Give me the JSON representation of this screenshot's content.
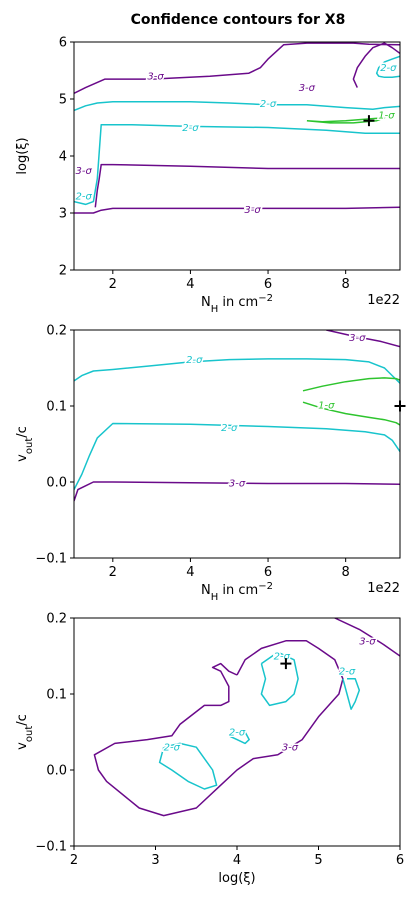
{
  "figure": {
    "title": "Confidence contours for X8"
  },
  "colors": {
    "three_sigma": "#6a0a8a",
    "two_sigma": "#18c4cc",
    "one_sigma": "#2ec42e",
    "axes": "#000000"
  },
  "chart_data": [
    {
      "type": "line",
      "xlabel": "N_H in cm^-2",
      "ylabel": "log(ξ)",
      "x_exponent": "1e22",
      "xlim": [
        1,
        9.4
      ],
      "ylim": [
        2,
        6
      ],
      "xticks": [
        "2",
        "4",
        "6",
        "8"
      ],
      "yticks": [
        "2",
        "3",
        "4",
        "5",
        "6"
      ],
      "best_fit": {
        "x": 8.6,
        "y": 4.62
      },
      "series": [
        {
          "name": "3-σ",
          "level": "3-sigma",
          "labels": [
            {
              "text": "3-σ",
              "x": 3.1,
              "y": 5.4
            },
            {
              "text": "3-σ",
              "x": 5.6,
              "y": 3.06
            },
            {
              "text": "3-σ",
              "x": 1.25,
              "y": 3.75
            },
            {
              "text": "3-σ",
              "x": 7.0,
              "y": 5.2
            }
          ],
          "x": [
            1.0,
            1.3,
            1.8,
            3.0,
            4.5,
            5.5,
            5.8,
            6.0,
            6.4,
            7.0,
            7.6,
            8.2,
            8.6,
            9.4
          ],
          "y": [
            5.1,
            5.2,
            5.35,
            5.35,
            5.4,
            5.45,
            5.55,
            5.7,
            5.95,
            5.98,
            5.98,
            5.98,
            5.96,
            5.95
          ]
        },
        {
          "name": "3-σ",
          "level": "3-sigma",
          "x": [
            1.0,
            1.3,
            1.5,
            1.7,
            2.0,
            4.0,
            6.0,
            8.0,
            9.4
          ],
          "y": [
            3.0,
            3.0,
            3.0,
            3.05,
            3.08,
            3.08,
            3.08,
            3.08,
            3.1
          ]
        },
        {
          "name": "3-σ",
          "level": "3-sigma",
          "x": [
            1.55,
            1.6,
            1.65,
            1.7,
            2.0,
            4.0,
            6.0,
            8.0,
            9.4
          ],
          "y": [
            3.1,
            3.4,
            3.6,
            3.85,
            3.85,
            3.82,
            3.78,
            3.78,
            3.78
          ]
        },
        {
          "name": "3-σ",
          "level": "3-sigma",
          "x": [
            9.4,
            9.2,
            9.0,
            8.7,
            8.5,
            8.3,
            8.2,
            8.3
          ],
          "y": [
            5.8,
            5.9,
            5.98,
            5.9,
            5.75,
            5.55,
            5.35,
            5.2
          ]
        },
        {
          "name": "2-σ",
          "level": "2-sigma",
          "labels": [
            {
              "text": "2-σ",
              "x": 6.0,
              "y": 4.92
            },
            {
              "text": "2-σ",
              "x": 4.0,
              "y": 4.5
            },
            {
              "text": "2-σ",
              "x": 1.25,
              "y": 3.3
            },
            {
              "text": "2-σ",
              "x": 9.1,
              "y": 5.55
            }
          ],
          "x": [
            1.0,
            1.3,
            1.5,
            1.6,
            1.7,
            2.5,
            4.0,
            6.0,
            7.5,
            8.5,
            9.1,
            9.4
          ],
          "y": [
            3.2,
            3.15,
            3.2,
            3.6,
            4.55,
            4.55,
            4.52,
            4.5,
            4.45,
            4.4,
            4.4,
            4.4
          ]
        },
        {
          "name": "2-σ",
          "level": "2-sigma",
          "x": [
            1.0,
            1.3,
            1.6,
            2.0,
            3.0,
            4.0,
            5.0,
            6.0,
            7.0,
            8.0,
            8.7,
            9.0,
            9.4
          ],
          "y": [
            4.8,
            4.88,
            4.93,
            4.95,
            4.95,
            4.95,
            4.93,
            4.9,
            4.9,
            4.85,
            4.82,
            4.85,
            4.87
          ]
        },
        {
          "name": "2-σ",
          "level": "2-sigma",
          "x": [
            9.4,
            9.2,
            9.0,
            8.85,
            8.8,
            8.85,
            9.0,
            9.2,
            9.4
          ],
          "y": [
            5.75,
            5.7,
            5.65,
            5.55,
            5.45,
            5.4,
            5.38,
            5.38,
            5.4
          ]
        },
        {
          "name": "1-σ",
          "level": "1-sigma",
          "labels": [
            {
              "text": "1-σ",
              "x": 9.05,
              "y": 4.72
            }
          ],
          "x": [
            7.0,
            7.4,
            8.0,
            8.6,
            9.0,
            8.8,
            8.2,
            7.6,
            7.0
          ],
          "y": [
            4.62,
            4.6,
            4.62,
            4.65,
            4.67,
            4.62,
            4.58,
            4.58,
            4.62
          ]
        }
      ]
    },
    {
      "type": "line",
      "xlabel": "N_H in cm^-2",
      "ylabel": "v_out/c",
      "x_exponent": "1e22",
      "xlim": [
        1,
        9.4
      ],
      "ylim": [
        -0.1,
        0.2
      ],
      "xticks": [
        "2",
        "4",
        "6",
        "8"
      ],
      "yticks": [
        "−0.1",
        "0.0",
        "0.1",
        "0.2"
      ],
      "best_fit": {
        "x": 9.4,
        "y": 0.1
      },
      "series": [
        {
          "name": "3-σ",
          "level": "3-sigma",
          "labels": [
            {
              "text": "3-σ",
              "x": 8.3,
              "y": 0.19
            },
            {
              "text": "3-σ",
              "x": 5.2,
              "y": -0.001
            }
          ],
          "x": [
            7.5,
            8.2,
            8.9,
            9.4
          ],
          "y": [
            0.2,
            0.192,
            0.185,
            0.178
          ]
        },
        {
          "name": "3-σ",
          "level": "3-sigma",
          "x": [
            1.0,
            1.1,
            1.3,
            1.5,
            2.0,
            4.0,
            6.0,
            8.0,
            9.4
          ],
          "y": [
            -0.025,
            -0.01,
            -0.005,
            0.0,
            0.0,
            -0.001,
            -0.002,
            -0.002,
            -0.003
          ]
        },
        {
          "name": "2-σ",
          "level": "2-sigma",
          "labels": [
            {
              "text": "2-σ",
              "x": 4.1,
              "y": 0.161
            },
            {
              "text": "2-σ",
              "x": 5.0,
              "y": 0.072
            }
          ],
          "x": [
            1.0,
            1.2,
            1.5,
            2.0,
            3.0,
            4.0,
            5.0,
            6.0,
            7.0,
            8.0,
            8.6,
            9.0,
            9.2,
            9.4
          ],
          "y": [
            0.133,
            0.14,
            0.146,
            0.148,
            0.153,
            0.158,
            0.161,
            0.162,
            0.162,
            0.161,
            0.158,
            0.15,
            0.14,
            0.13
          ]
        },
        {
          "name": "2-σ",
          "level": "2-sigma",
          "x": [
            1.0,
            1.2,
            1.4,
            1.6,
            2.0,
            4.0,
            6.0,
            7.5,
            8.5,
            9.0,
            9.2,
            9.4
          ],
          "y": [
            -0.01,
            0.01,
            0.035,
            0.058,
            0.077,
            0.076,
            0.073,
            0.07,
            0.066,
            0.062,
            0.055,
            0.04
          ]
        },
        {
          "name": "1-σ",
          "level": "1-sigma",
          "labels": [
            {
              "text": "1-σ",
              "x": 7.5,
              "y": 0.101
            }
          ],
          "x": [
            6.9,
            7.4,
            8.0,
            8.6,
            9.0,
            9.3,
            9.4
          ],
          "y": [
            0.12,
            0.126,
            0.132,
            0.136,
            0.137,
            0.136,
            0.134
          ]
        },
        {
          "name": "1-σ",
          "level": "1-sigma",
          "x": [
            6.9,
            7.4,
            8.0,
            8.6,
            9.0,
            9.3,
            9.4
          ],
          "y": [
            0.105,
            0.097,
            0.09,
            0.085,
            0.082,
            0.078,
            0.075
          ]
        }
      ]
    },
    {
      "type": "line",
      "xlabel": "log(ξ)",
      "ylabel": "v_out/c",
      "xlim": [
        2,
        6
      ],
      "ylim": [
        -0.1,
        0.2
      ],
      "xticks": [
        "2",
        "3",
        "4",
        "5",
        "6"
      ],
      "yticks": [
        "−0.1",
        "0.0",
        "0.1",
        "0.2"
      ],
      "best_fit": {
        "x": 4.6,
        "y": 0.14
      },
      "series": [
        {
          "name": "3-σ",
          "level": "3-sigma",
          "labels": [
            {
              "text": "3-σ",
              "x": 5.6,
              "y": 0.17
            },
            {
              "text": "3-σ",
              "x": 4.65,
              "y": 0.03
            }
          ],
          "x": [
            5.2,
            5.5,
            5.8,
            6.0
          ],
          "y": [
            0.2,
            0.185,
            0.165,
            0.15
          ]
        },
        {
          "name": "3-σ",
          "level": "3-sigma",
          "x": [
            4.0,
            4.1,
            4.3,
            4.6,
            4.85,
            5.0,
            5.2,
            5.3,
            5.25,
            5.0,
            4.8,
            4.5,
            4.2,
            4.0,
            3.8,
            3.5,
            3.1,
            2.8,
            2.4,
            2.3,
            2.25,
            2.5,
            2.9,
            3.2,
            3.3,
            3.6,
            3.8,
            3.9,
            3.9,
            3.8,
            3.7,
            3.8,
            3.9,
            4.0
          ],
          "y": [
            0.125,
            0.145,
            0.16,
            0.17,
            0.17,
            0.16,
            0.145,
            0.12,
            0.1,
            0.07,
            0.04,
            0.02,
            0.015,
            0.0,
            -0.02,
            -0.05,
            -0.06,
            -0.05,
            -0.015,
            0.0,
            0.02,
            0.035,
            0.04,
            0.045,
            0.06,
            0.085,
            0.085,
            0.09,
            0.11,
            0.13,
            0.135,
            0.14,
            0.13,
            0.125
          ]
        },
        {
          "name": "2-σ",
          "level": "2-sigma",
          "labels": [
            {
              "text": "2-σ",
              "x": 3.2,
              "y": 0.03
            },
            {
              "text": "2-σ",
              "x": 4.0,
              "y": 0.05
            },
            {
              "text": "2-σ",
              "x": 4.55,
              "y": 0.15
            },
            {
              "text": "2-σ",
              "x": 5.35,
              "y": 0.13
            }
          ],
          "x": [
            4.3,
            4.5,
            4.7,
            4.75,
            4.7,
            4.6,
            4.4,
            4.3,
            4.35,
            4.3
          ],
          "y": [
            0.14,
            0.155,
            0.145,
            0.12,
            0.1,
            0.09,
            0.085,
            0.1,
            0.12,
            0.14
          ]
        },
        {
          "name": "2-σ",
          "level": "2-sigma",
          "x": [
            3.1,
            3.3,
            3.5,
            3.7,
            3.75,
            3.6,
            3.4,
            3.2,
            3.05,
            3.1
          ],
          "y": [
            0.03,
            0.035,
            0.03,
            0.0,
            -0.02,
            -0.025,
            -0.015,
            0.0,
            0.01,
            0.03
          ]
        },
        {
          "name": "2-σ",
          "level": "2-sigma",
          "x": [
            3.9,
            4.0,
            4.1,
            4.15,
            4.1,
            4.0,
            3.9
          ],
          "y": [
            0.045,
            0.05,
            0.05,
            0.04,
            0.035,
            0.04,
            0.045
          ]
        },
        {
          "name": "2-σ",
          "level": "2-sigma",
          "x": [
            5.35,
            5.45,
            5.5,
            5.45,
            5.4,
            5.35,
            5.3
          ],
          "y": [
            0.12,
            0.12,
            0.105,
            0.09,
            0.08,
            0.1,
            0.12
          ]
        }
      ]
    }
  ]
}
